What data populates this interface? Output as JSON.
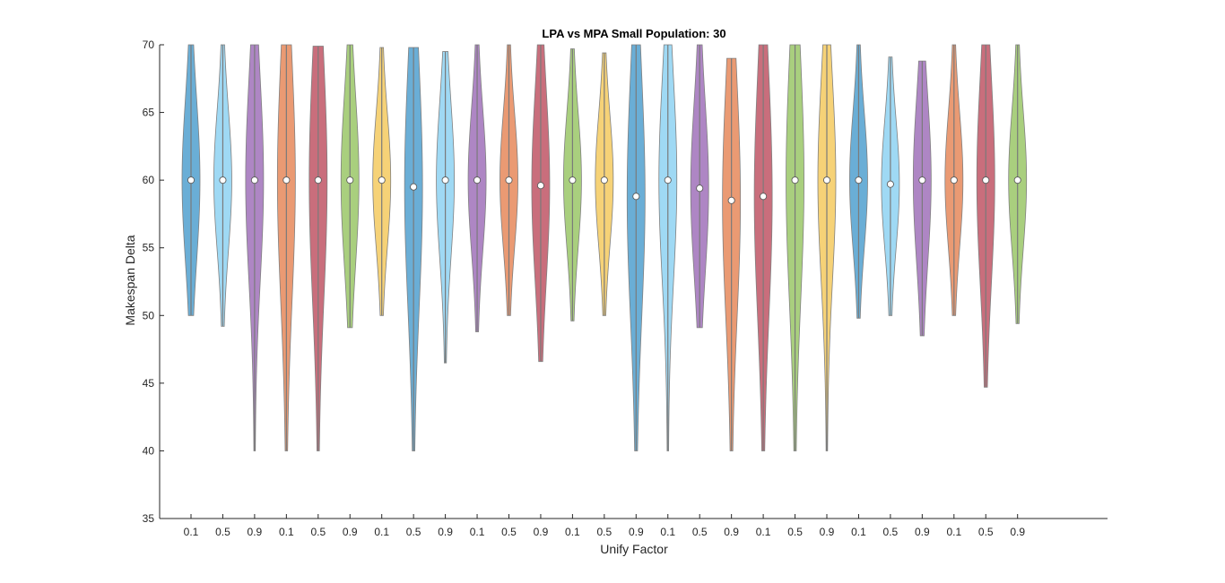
{
  "chart_data": {
    "type": "violin",
    "title": "LPA vs MPA Small Population: 30",
    "xlabel": "Unify Factor",
    "ylabel": "Makespan Delta",
    "ylim": [
      35,
      70
    ],
    "yticks": [
      35,
      40,
      45,
      50,
      55,
      60,
      65,
      70
    ],
    "grid": false,
    "categories": [
      "0.1",
      "0.5",
      "0.9",
      "0.1",
      "0.5",
      "0.9",
      "0.1",
      "0.5",
      "0.9",
      "0.1",
      "0.5",
      "0.9",
      "0.1",
      "0.5",
      "0.9",
      "0.1",
      "0.5",
      "0.9",
      "0.1",
      "0.5",
      "0.9",
      "0.1",
      "0.5",
      "0.9",
      "0.1",
      "0.5",
      "0.9"
    ],
    "colors": [
      "#6aaed6",
      "#9fd9f4",
      "#ae86c4",
      "#ea9a73",
      "#c96e7c",
      "#a9cf7e",
      "#f6d277"
    ],
    "violins": [
      {
        "min": 50.0,
        "max": 70.0,
        "median": 60.0,
        "width": 0.3
      },
      {
        "min": 49.2,
        "max": 70.0,
        "median": 60.0,
        "width": 0.25
      },
      {
        "min": 40.0,
        "max": 70.0,
        "median": 60.0,
        "width": 0.25
      },
      {
        "min": 40.0,
        "max": 70.0,
        "median": 60.0,
        "width": 0.3
      },
      {
        "min": 40.0,
        "max": 69.9,
        "median": 60.0,
        "width": 0.3
      },
      {
        "min": 49.1,
        "max": 70.0,
        "median": 60.0,
        "width": 0.3
      },
      {
        "min": 50.0,
        "max": 69.8,
        "median": 60.0,
        "width": 0.25
      },
      {
        "min": 40.0,
        "max": 69.8,
        "median": 59.5,
        "width": 0.3
      },
      {
        "min": 46.5,
        "max": 69.5,
        "median": 60.0,
        "width": 0.25
      },
      {
        "min": 48.8,
        "max": 70.0,
        "median": 60.0,
        "width": 0.25
      },
      {
        "min": 50.0,
        "max": 70.0,
        "median": 60.0,
        "width": 0.25
      },
      {
        "min": 46.6,
        "max": 70.0,
        "median": 59.6,
        "width": 0.3
      },
      {
        "min": 49.6,
        "max": 69.7,
        "median": 60.0,
        "width": 0.25
      },
      {
        "min": 50.0,
        "max": 69.4,
        "median": 60.0,
        "width": 0.25
      },
      {
        "min": 40.0,
        "max": 70.0,
        "median": 58.8,
        "width": 0.3
      },
      {
        "min": 40.0,
        "max": 70.0,
        "median": 60.0,
        "width": 0.25
      },
      {
        "min": 49.1,
        "max": 70.0,
        "median": 59.4,
        "width": 0.3
      },
      {
        "min": 40.0,
        "max": 69.0,
        "median": 58.5,
        "width": 0.3
      },
      {
        "min": 40.0,
        "max": 70.0,
        "median": 58.8,
        "width": 0.3
      },
      {
        "min": 40.0,
        "max": 70.0,
        "median": 60.0,
        "width": 0.3
      },
      {
        "min": 40.0,
        "max": 70.0,
        "median": 60.0,
        "width": 0.25
      },
      {
        "min": 49.8,
        "max": 70.0,
        "median": 60.0,
        "width": 0.25
      },
      {
        "min": 50.0,
        "max": 69.1,
        "median": 59.7,
        "width": 0.25
      },
      {
        "min": 48.5,
        "max": 68.8,
        "median": 60.0,
        "width": 0.3
      },
      {
        "min": 50.0,
        "max": 70.0,
        "median": 60.0,
        "width": 0.25
      },
      {
        "min": 44.7,
        "max": 70.0,
        "median": 60.0,
        "width": 0.3
      },
      {
        "min": 49.4,
        "max": 70.0,
        "median": 60.0,
        "width": 0.25
      }
    ]
  }
}
